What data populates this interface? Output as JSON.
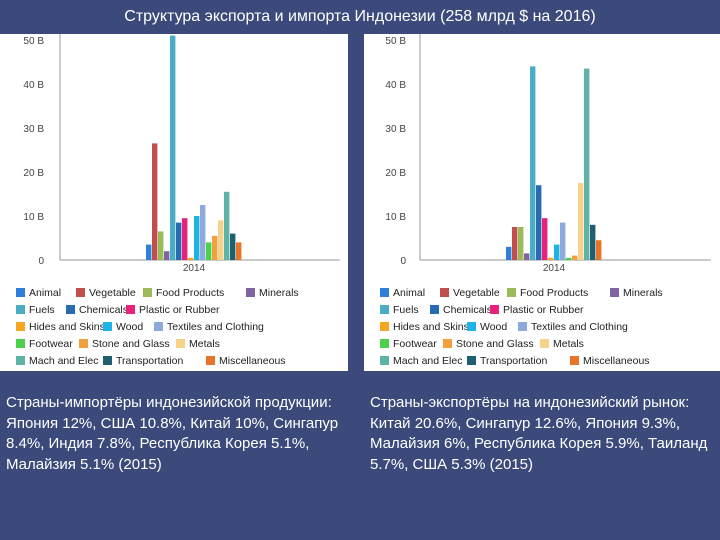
{
  "title": "Структура экспорта и импорта Индонезии (258 млрд $ на 2016)",
  "legend_labels": [
    "Animal",
    "Vegetable",
    "Food Products",
    "Minerals",
    "Fuels",
    "Chemicals",
    "Plastic or Rubber",
    "Hides and Skins",
    "Wood",
    "Textiles and Clothing",
    "Footwear",
    "Stone and Glass",
    "Metals",
    "Mach and Elec",
    "Transportation",
    "Miscellaneous"
  ],
  "colors": [
    "#2f7ed8",
    "#c0504d",
    "#9bbb59",
    "#8064a2",
    "#4bacc6",
    "#2a6ab0",
    "#e8217b",
    "#f5a623",
    "#1eb4e8",
    "#8ea9db",
    "#4cd14c",
    "#f2a03d",
    "#f6d28a",
    "#5fb3a6",
    "#1f5f6e",
    "#e8742a"
  ],
  "chart_data": [
    {
      "type": "bar",
      "categories": [
        "2014"
      ],
      "ylim": [
        0,
        50
      ],
      "yticks": [
        "0",
        "10 B",
        "20 B",
        "30 B",
        "40 B",
        "50 B"
      ],
      "series": [
        {
          "name": "Animal",
          "values": [
            3.5
          ]
        },
        {
          "name": "Vegetable",
          "values": [
            26.5
          ]
        },
        {
          "name": "Food Products",
          "values": [
            6.5
          ]
        },
        {
          "name": "Minerals",
          "values": [
            2
          ]
        },
        {
          "name": "Fuels",
          "values": [
            51
          ]
        },
        {
          "name": "Chemicals",
          "values": [
            8.5
          ]
        },
        {
          "name": "Plastic or Rubber",
          "values": [
            9.5
          ]
        },
        {
          "name": "Hides and Skins",
          "values": [
            0.5
          ]
        },
        {
          "name": "Wood",
          "values": [
            10
          ]
        },
        {
          "name": "Textiles and Clothing",
          "values": [
            12.5
          ]
        },
        {
          "name": "Footwear",
          "values": [
            4
          ]
        },
        {
          "name": "Stone and Glass",
          "values": [
            5.5
          ]
        },
        {
          "name": "Metals",
          "values": [
            9
          ]
        },
        {
          "name": "Mach and Elec",
          "values": [
            15.5
          ]
        },
        {
          "name": "Transportation",
          "values": [
            6
          ]
        },
        {
          "name": "Miscellaneous",
          "values": [
            4
          ]
        }
      ]
    },
    {
      "type": "bar",
      "categories": [
        "2014"
      ],
      "ylim": [
        0,
        50
      ],
      "yticks": [
        "0",
        "10 B",
        "20 B",
        "30 B",
        "40 B",
        "50 B"
      ],
      "series": [
        {
          "name": "Animal",
          "values": [
            3
          ]
        },
        {
          "name": "Vegetable",
          "values": [
            7.5
          ]
        },
        {
          "name": "Food Products",
          "values": [
            7.5
          ]
        },
        {
          "name": "Minerals",
          "values": [
            1.5
          ]
        },
        {
          "name": "Fuels",
          "values": [
            44
          ]
        },
        {
          "name": "Chemicals",
          "values": [
            17
          ]
        },
        {
          "name": "Plastic or Rubber",
          "values": [
            9.5
          ]
        },
        {
          "name": "Hides and Skins",
          "values": [
            0.5
          ]
        },
        {
          "name": "Wood",
          "values": [
            3.5
          ]
        },
        {
          "name": "Textiles and Clothing",
          "values": [
            8.5
          ]
        },
        {
          "name": "Footwear",
          "values": [
            0.5
          ]
        },
        {
          "name": "Stone and Glass",
          "values": [
            1
          ]
        },
        {
          "name": "Metals",
          "values": [
            17.5
          ]
        },
        {
          "name": "Mach and Elec",
          "values": [
            43.5
          ]
        },
        {
          "name": "Transportation",
          "values": [
            8
          ]
        },
        {
          "name": "Miscellaneous",
          "values": [
            4.5
          ]
        }
      ]
    }
  ],
  "text_left": {
    "heading": "Страны-импортёры индонезийской продукции:",
    "body": "Япония 12%, США 10.8%, Китай 10%, Сингапур 8.4%, Индия 7.8%, Республика Корея 5.1%, Малайзия 5.1% (2015)"
  },
  "text_right": {
    "heading": "Страны-экспортёры на индонезийский рынок:",
    "body": "Китай 20.6%, Сингапур 12.6%, Япония 9.3%, Малайзия 6%, Республика Корея 5.9%, Таиланд 5.7%, США 5.3% (2015)"
  }
}
